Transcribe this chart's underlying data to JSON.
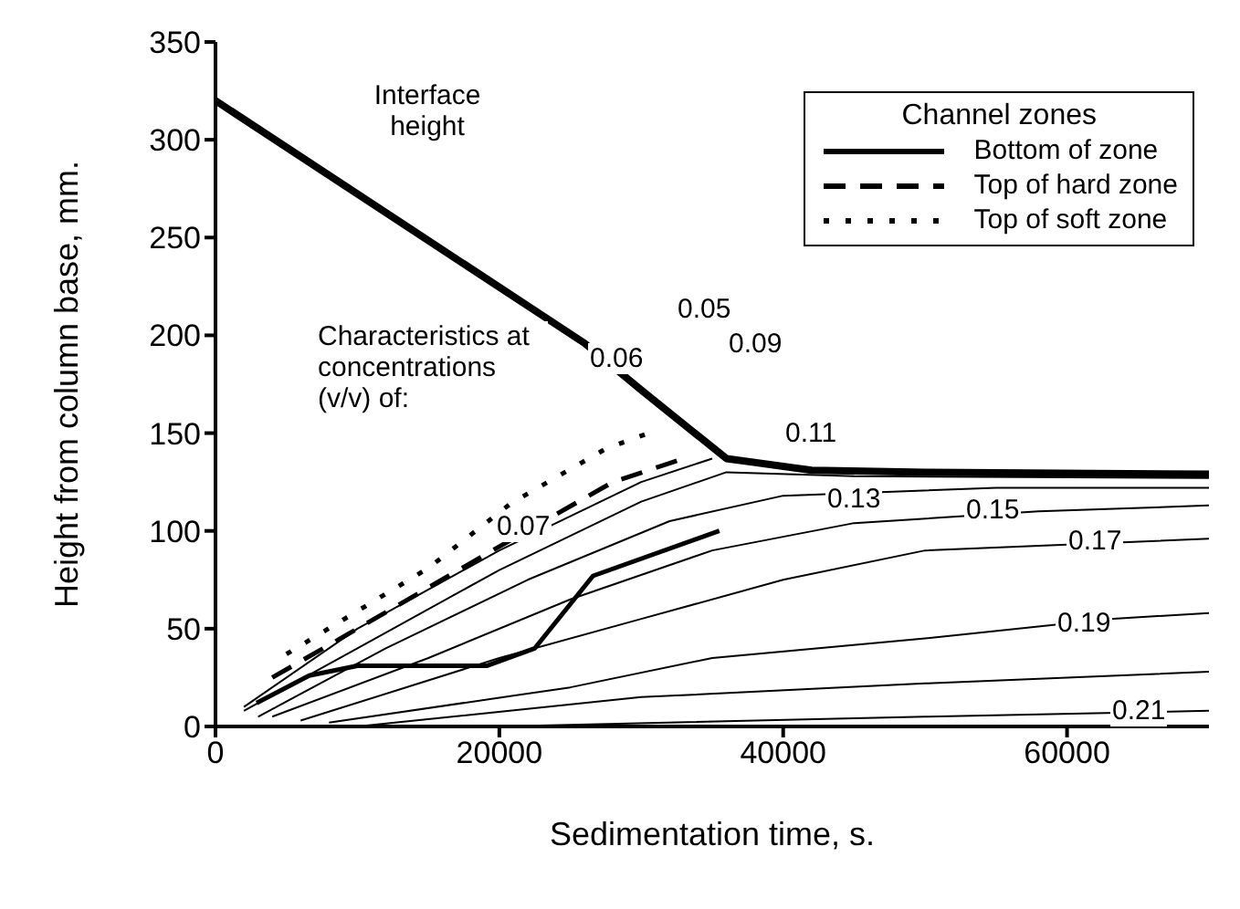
{
  "chart_data": {
    "type": "line",
    "xlabel": "Sedimentation time, s.",
    "ylabel": "Height from column base, mm.",
    "legend_title": "Channel zones",
    "legend": "top right",
    "grid": false,
    "marker": "none",
    "xlim": [
      0,
      70000
    ],
    "xticks": [
      0,
      20000,
      40000,
      60000
    ],
    "ylim": [
      0,
      350
    ],
    "yticks": [
      0,
      50,
      100,
      150,
      200,
      250,
      300,
      350
    ],
    "series": [
      {
        "color": "#000000",
        "x": [
          0,
          26000,
          30000,
          36000,
          42000,
          50000,
          70000
        ],
        "values": [
          320,
          196,
          172,
          137,
          131,
          130,
          129
        ]
      },
      {
        "name": "Bottom of zone",
        "color": "#000000",
        "line_style": "solid",
        "x": [
          2900,
          6600,
          10000,
          19100,
          22500,
          26600,
          35500
        ],
        "values": [
          12,
          26,
          31,
          31,
          40,
          77,
          100
        ]
      },
      {
        "name": "Top of hard zone",
        "color": "#000000",
        "line_style": "dashed",
        "x": [
          4000,
          10000,
          20000,
          28000,
          33000
        ],
        "values": [
          25,
          50,
          92,
          125,
          137
        ]
      },
      {
        "name": "Top of soft zone",
        "color": "#000000",
        "line_style": "dotted",
        "x": [
          5000,
          15000,
          20800,
          27500,
          30500
        ],
        "values": [
          37,
          81,
          114,
          142,
          150
        ]
      },
      {
        "color": "#000000",
        "x": [
          2000,
          10000,
          20000,
          30000,
          35000
        ],
        "values": [
          10,
          50,
          90,
          125,
          137
        ]
      },
      {
        "color": "#000000",
        "x": [
          2000,
          10000,
          20000,
          30000,
          36000,
          45000,
          70000
        ],
        "values": [
          8,
          40,
          80,
          115,
          130,
          128,
          127
        ]
      },
      {
        "color": "#000000",
        "x": [
          3000,
          12000,
          22000,
          32000,
          40000,
          55000,
          70000
        ],
        "values": [
          5,
          40,
          75,
          105,
          118,
          122,
          122
        ]
      },
      {
        "color": "#000000",
        "x": [
          4000,
          15000,
          25000,
          35000,
          45000,
          58000,
          70000
        ],
        "values": [
          5,
          35,
          65,
          90,
          104,
          110,
          113
        ]
      },
      {
        "color": "#000000",
        "x": [
          6000,
          20000,
          30000,
          40000,
          50000,
          70000
        ],
        "values": [
          3,
          35,
          55,
          75,
          90,
          96
        ]
      },
      {
        "color": "#000000",
        "x": [
          8000,
          25000,
          35000,
          50000,
          63000,
          70000
        ],
        "values": [
          2,
          20,
          35,
          45,
          55,
          58
        ]
      },
      {
        "color": "#000000",
        "x": [
          10000,
          30000,
          50000,
          70000
        ],
        "values": [
          0,
          15,
          22,
          28
        ]
      },
      {
        "color": "#000000",
        "x": [
          20000,
          50000,
          70000
        ],
        "values": [
          0,
          5,
          8
        ]
      }
    ],
    "annotations": [
      "Characteristics at concentrations (v/v) of:",
      "Interface height",
      "0.05",
      "0.06",
      "0.09",
      "0.11",
      "0.13",
      "0.07",
      "0.15",
      "0.17",
      "0.19",
      "0.21"
    ]
  }
}
